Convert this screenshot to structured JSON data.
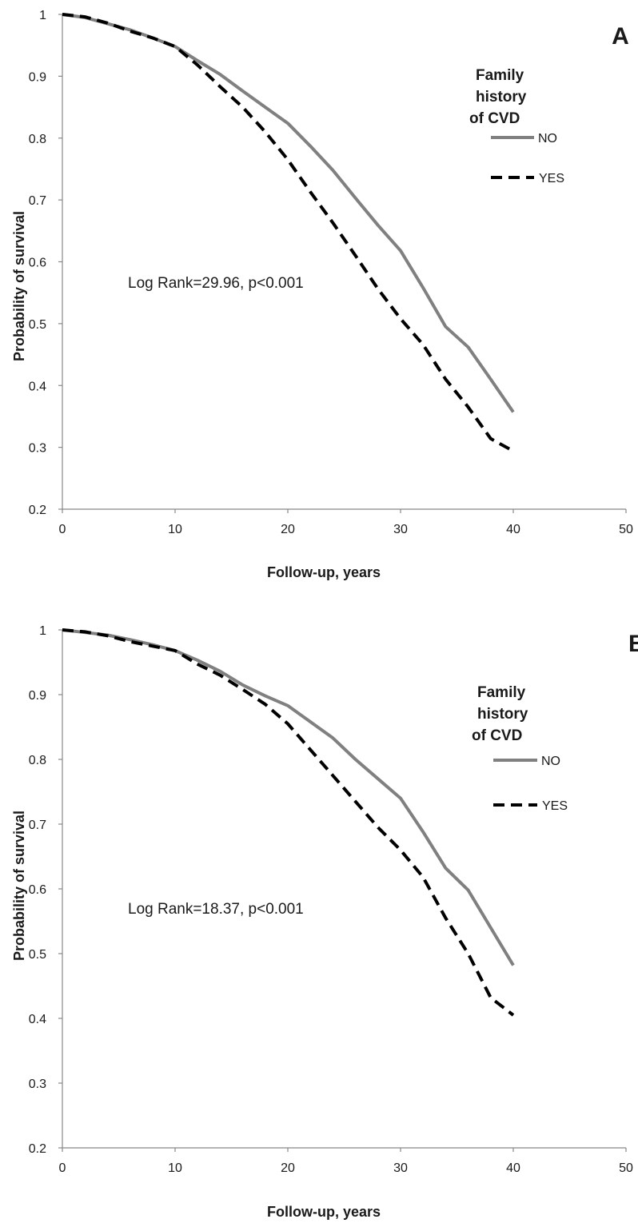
{
  "chart_data": [
    {
      "type": "line",
      "panel_label": "A",
      "xlabel": "Follow-up, years",
      "ylabel": "Probability of survival",
      "xlim": [
        0,
        50
      ],
      "ylim": [
        0.2,
        1
      ],
      "x_ticks": [
        "0",
        "10",
        "20",
        "30",
        "40",
        "50"
      ],
      "y_ticks": [
        "0.2",
        "0.3",
        "0.4",
        "0.5",
        "0.6",
        "0.7",
        "0.8",
        "0.9",
        "1"
      ],
      "grid": false,
      "legend": {
        "title": "Family history of CVD",
        "title_lines": [
          "Family",
          "history",
          "of CVD"
        ],
        "position": "top-right",
        "entries": [
          "NO",
          "YES"
        ]
      },
      "annotation": "Log Rank=29.96, p<0.001",
      "series": [
        {
          "name": "NO",
          "style": "solid",
          "color": "#808080",
          "x": [
            0,
            2,
            4,
            6,
            8,
            10,
            12,
            14,
            16,
            18,
            20,
            22,
            24,
            26,
            28,
            30,
            32,
            34,
            36,
            38,
            40
          ],
          "y": [
            1.0,
            0.995,
            0.985,
            0.975,
            0.962,
            0.948,
            0.925,
            0.903,
            0.876,
            0.85,
            0.824,
            0.787,
            0.748,
            0.703,
            0.659,
            0.618,
            0.558,
            0.495,
            0.462,
            0.41,
            0.357
          ]
        },
        {
          "name": "YES",
          "style": "dashed",
          "color": "#000000",
          "x": [
            0,
            2,
            4,
            6,
            8,
            10,
            12,
            14,
            16,
            18,
            20,
            22,
            24,
            26,
            28,
            30,
            32,
            34,
            36,
            38,
            40
          ],
          "y": [
            1.0,
            0.996,
            0.986,
            0.973,
            0.962,
            0.948,
            0.918,
            0.883,
            0.85,
            0.81,
            0.765,
            0.713,
            0.663,
            0.61,
            0.556,
            0.508,
            0.466,
            0.41,
            0.365,
            0.314,
            0.294
          ]
        }
      ]
    },
    {
      "type": "line",
      "panel_label": "B",
      "xlabel": "Follow-up, years",
      "ylabel": "Probability of survival",
      "xlim": [
        0,
        50
      ],
      "ylim": [
        0.2,
        1
      ],
      "x_ticks": [
        "0",
        "10",
        "20",
        "30",
        "40",
        "50"
      ],
      "y_ticks": [
        "0.2",
        "0.3",
        "0.4",
        "0.5",
        "0.6",
        "0.7",
        "0.8",
        "0.9",
        "1"
      ],
      "grid": false,
      "legend": {
        "title": "Family history of CVD",
        "title_lines": [
          "Family",
          "history",
          "of CVD"
        ],
        "position": "top-right",
        "entries": [
          "NO",
          "YES"
        ]
      },
      "annotation": "Log Rank=18.37, p<0.001",
      "series": [
        {
          "name": "NO",
          "style": "solid",
          "color": "#808080",
          "x": [
            0,
            2,
            4,
            6,
            8,
            10,
            12,
            14,
            16,
            18,
            20,
            22,
            24,
            26,
            28,
            30,
            32,
            34,
            36,
            38,
            40
          ],
          "y": [
            1.0,
            0.996,
            0.992,
            0.985,
            0.977,
            0.968,
            0.953,
            0.936,
            0.915,
            0.898,
            0.883,
            0.858,
            0.833,
            0.8,
            0.77,
            0.74,
            0.688,
            0.632,
            0.598,
            0.54,
            0.482
          ]
        },
        {
          "name": "YES",
          "style": "dashed",
          "color": "#000000",
          "x": [
            0,
            2,
            4,
            6,
            8,
            10,
            12,
            14,
            16,
            18,
            20,
            22,
            24,
            26,
            28,
            30,
            32,
            34,
            36,
            38,
            40
          ],
          "y": [
            1.0,
            0.997,
            0.991,
            0.982,
            0.975,
            0.968,
            0.947,
            0.93,
            0.908,
            0.885,
            0.855,
            0.815,
            0.775,
            0.735,
            0.695,
            0.66,
            0.618,
            0.555,
            0.5,
            0.432,
            0.405
          ]
        }
      ]
    }
  ]
}
